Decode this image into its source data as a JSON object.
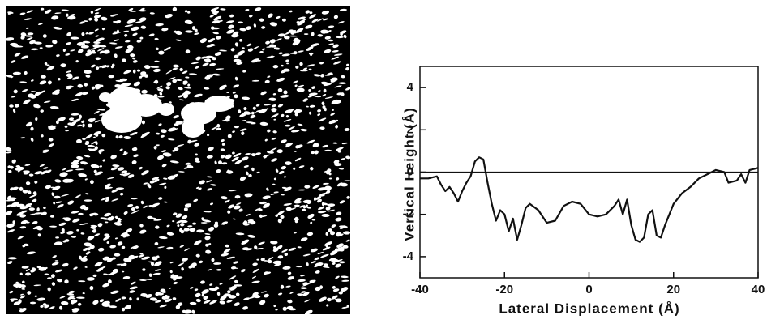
{
  "chart_data": {
    "type": "line",
    "x_label": "Lateral Displacement (Å)",
    "y_label": "Vertical Height (Å)",
    "xlim": [
      -40,
      40
    ],
    "xticks": [
      -40,
      -20,
      0,
      20,
      40
    ],
    "ylim": [
      -5,
      5
    ],
    "yticks": [
      -4,
      -2,
      0,
      2,
      4
    ],
    "zero_line": true,
    "series": [
      {
        "color": "#111111",
        "x": [
          -40,
          -38,
          -36,
          -35,
          -34,
          -33,
          -32,
          -31,
          -30,
          -29,
          -28,
          -27,
          -26,
          -25,
          -24,
          -23,
          -22,
          -21,
          -20,
          -19,
          -18,
          -17,
          -16,
          -15,
          -14,
          -12,
          -10,
          -8,
          -6,
          -4,
          -2,
          0,
          2,
          4,
          6,
          7,
          8,
          9,
          10,
          11,
          12,
          13,
          14,
          15,
          16,
          17,
          18,
          20,
          22,
          24,
          26,
          28,
          30,
          32,
          33,
          35,
          36,
          37,
          38,
          40
        ],
        "values": [
          -0.3,
          -0.3,
          -0.2,
          -0.6,
          -0.9,
          -0.7,
          -1.0,
          -1.4,
          -0.9,
          -0.5,
          -0.2,
          0.5,
          0.7,
          0.6,
          -0.5,
          -1.5,
          -2.3,
          -1.8,
          -2.0,
          -2.8,
          -2.2,
          -3.2,
          -2.5,
          -1.7,
          -1.5,
          -1.8,
          -2.4,
          -2.3,
          -1.6,
          -1.4,
          -1.5,
          -2.0,
          -2.1,
          -2.0,
          -1.6,
          -1.3,
          -2.0,
          -1.3,
          -2.5,
          -3.2,
          -3.3,
          -3.1,
          -2.0,
          -1.8,
          -3.0,
          -3.1,
          -2.5,
          -1.5,
          -1.0,
          -0.7,
          -0.3,
          -0.1,
          0.1,
          0.0,
          -0.5,
          -0.4,
          -0.1,
          -0.5,
          0.1,
          0.2
        ]
      }
    ]
  }
}
